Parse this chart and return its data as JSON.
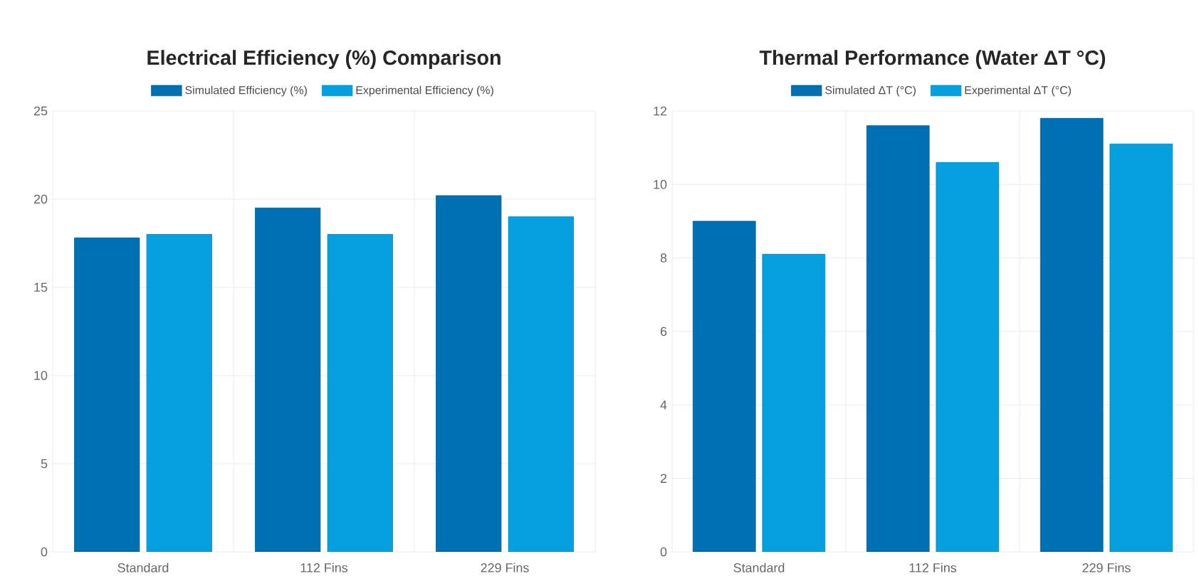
{
  "chart_data": [
    {
      "type": "bar",
      "title": "Electrical Efficiency (%) Comparison",
      "categories": [
        "Standard",
        "112 Fins",
        "229 Fins"
      ],
      "series": [
        {
          "name": "Simulated Efficiency (%)",
          "color": "#0070b2",
          "values": [
            17.8,
            19.5,
            20.2
          ]
        },
        {
          "name": "Experimental Efficiency (%)",
          "color": "#04a0e0",
          "values": [
            18.0,
            18.0,
            19.0
          ]
        }
      ],
      "ylim": [
        0,
        25
      ],
      "yticks": [
        0,
        5,
        10,
        15,
        20,
        25
      ],
      "grid": true,
      "legend": "top"
    },
    {
      "type": "bar",
      "title": "Thermal Performance (Water ΔT °C)",
      "categories": [
        "Standard",
        "112 Fins",
        "229 Fins"
      ],
      "series": [
        {
          "name": "Simulated ΔT (°C)",
          "color": "#0070b2",
          "values": [
            9.0,
            11.6,
            11.8
          ]
        },
        {
          "name": "Experimental ΔT (°C)",
          "color": "#04a0e0",
          "values": [
            8.1,
            10.6,
            11.1
          ]
        }
      ],
      "ylim": [
        0,
        12
      ],
      "yticks": [
        0,
        2,
        4,
        6,
        8,
        10,
        12
      ],
      "grid": true,
      "legend": "top"
    }
  ]
}
